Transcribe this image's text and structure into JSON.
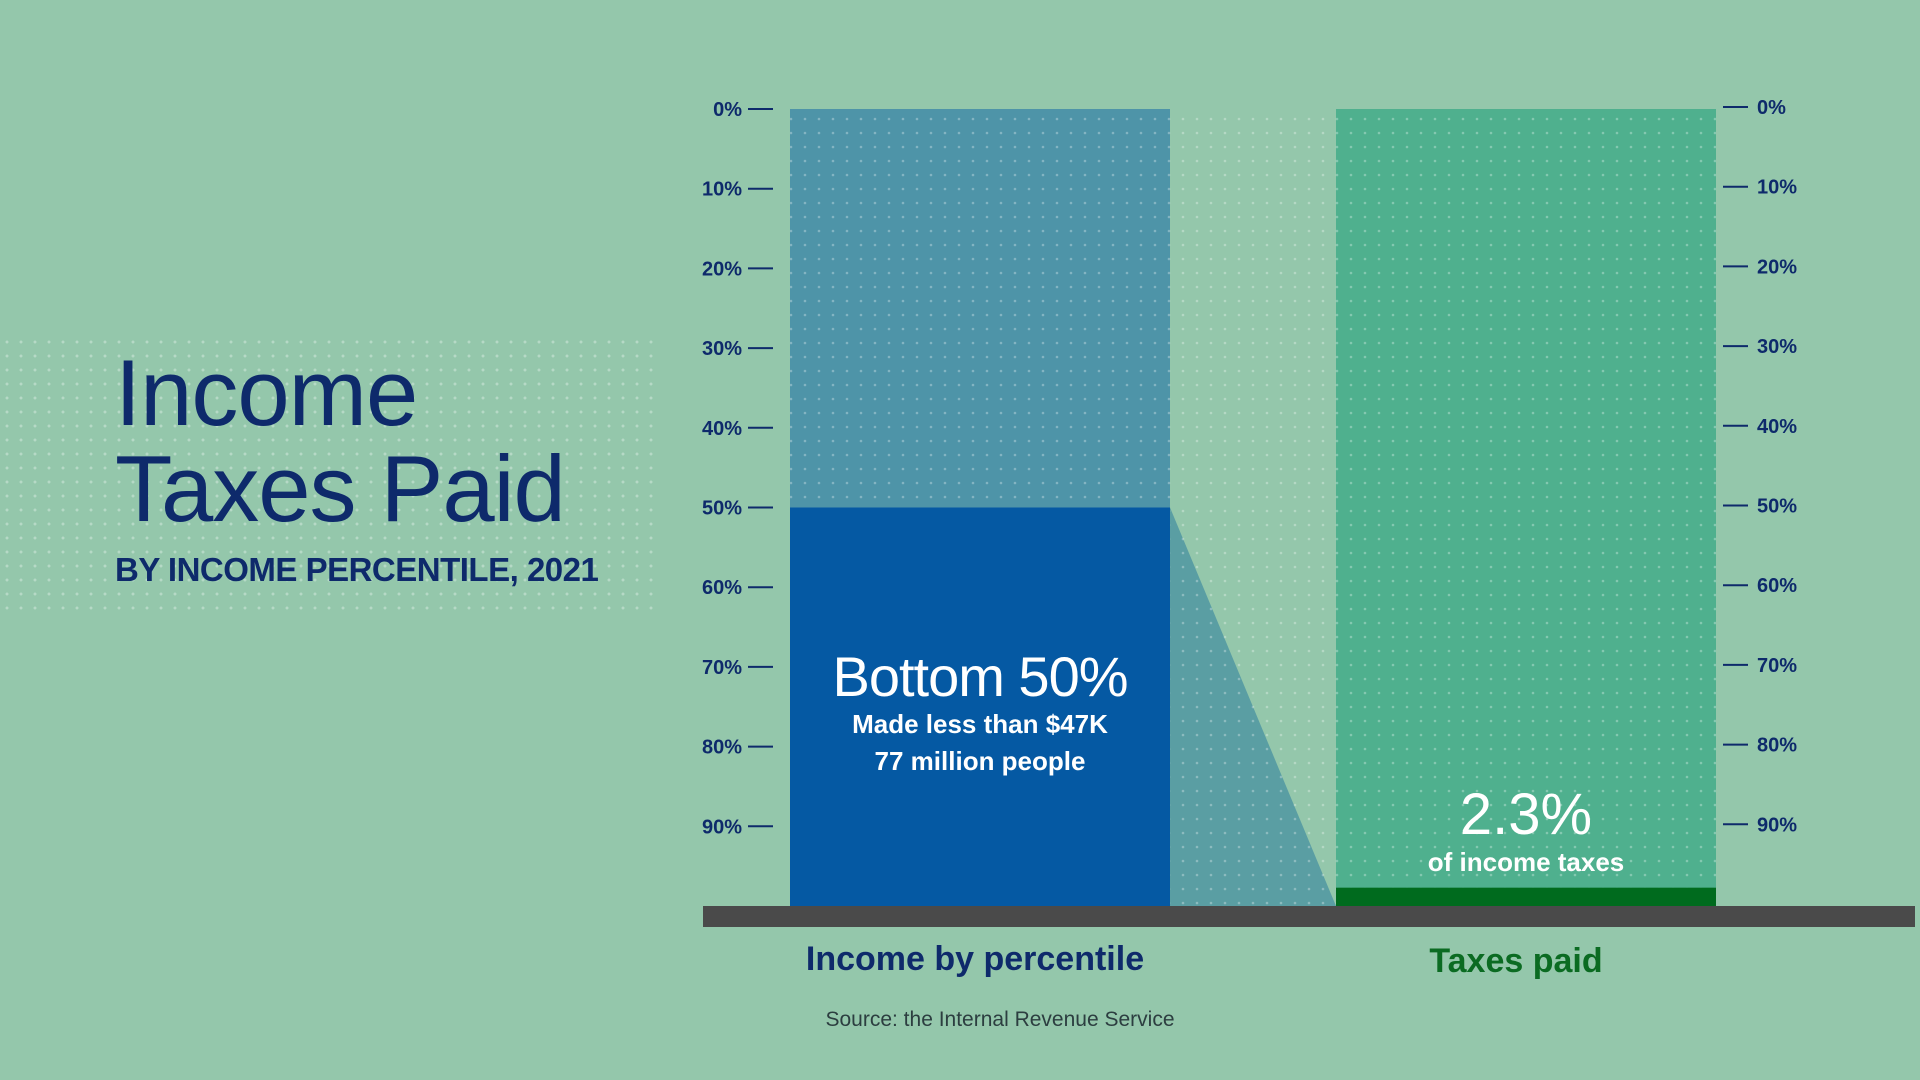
{
  "title": {
    "line1": "Income",
    "line2": "Taxes Paid",
    "subtitle": "BY INCOME PERCENTILE, 2021"
  },
  "source": "Source: the Internal Revenue Service",
  "colors": {
    "background": "#94c7ab",
    "income_bar_top": "#4e94a8",
    "bottom_50_fill": "#0559a3",
    "taxes_bar": "#4fb08e",
    "taxes_paid_fill": "#006b1e",
    "baseline": "#4a4a4a",
    "text_navy": "#0e2a6b",
    "text_green": "#0b6b22"
  },
  "chart_data": {
    "type": "bar",
    "orientation": "stacked-vertical",
    "categories": [
      "Income by percentile",
      "Taxes paid"
    ],
    "y_axis": {
      "ticks": [
        "0%",
        "10%",
        "20%",
        "30%",
        "40%",
        "50%",
        "60%",
        "70%",
        "80%",
        "90%"
      ],
      "range": [
        0,
        100
      ],
      "direction": "top-to-bottom",
      "sides": [
        "left",
        "right"
      ]
    },
    "series": [
      {
        "category": "Income by percentile",
        "highlight_value": 50,
        "unit": "%"
      },
      {
        "category": "Taxes paid",
        "highlight_value": 2.3,
        "unit": "%"
      }
    ],
    "annotations": {
      "bottom50": {
        "big": "Bottom 50%",
        "line1": "Made less than $47K",
        "line2": "77 million people"
      },
      "taxes": {
        "big": "2.3%",
        "line1": "of income taxes"
      }
    },
    "category_labels": {
      "income": "Income by percentile",
      "taxes": "Taxes paid"
    }
  }
}
